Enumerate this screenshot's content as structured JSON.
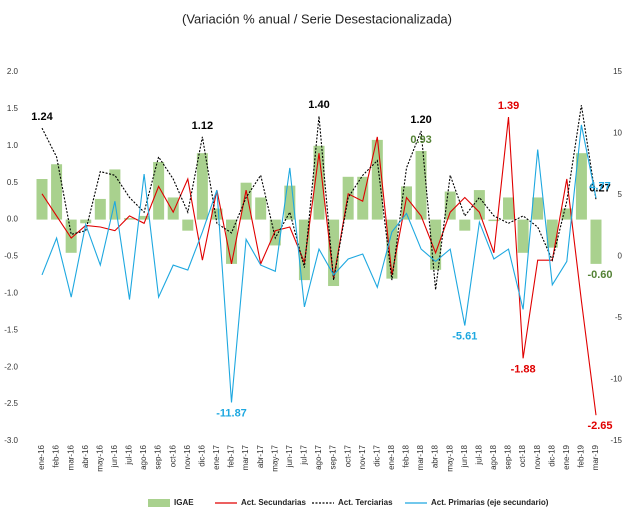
{
  "chart_data": {
    "type": "combo",
    "title": "(Variación % anual / Serie Desestacionalizada)",
    "categories": [
      "ene-16",
      "feb-16",
      "mar-16",
      "abr-16",
      "may-16",
      "jun-16",
      "jul-16",
      "ago-16",
      "sep-16",
      "oct-16",
      "nov-16",
      "dic-16",
      "ene-17",
      "feb-17",
      "mar-17",
      "abr-17",
      "may-17",
      "jun-17",
      "jul-17",
      "ago-17",
      "sep-17",
      "oct-17",
      "nov-17",
      "dic-17",
      "ene-18",
      "feb-18",
      "mar-18",
      "abr-18",
      "may-18",
      "jun-18",
      "jul-18",
      "ago-18",
      "sep-18",
      "oct-18",
      "nov-18",
      "dic-18",
      "ene-19",
      "feb-19",
      "mar-19"
    ],
    "series": [
      {
        "name": "IGAE",
        "kind": "bar",
        "color": "#a9d18e",
        "label_color": "#548235",
        "values": [
          0.55,
          0.75,
          -0.45,
          -0.05,
          0.28,
          0.68,
          0.02,
          0.05,
          0.78,
          0.3,
          -0.15,
          0.9,
          0.15,
          -0.6,
          0.5,
          0.3,
          -0.35,
          0.46,
          -0.82,
          1.0,
          -0.9,
          0.58,
          0.58,
          1.08,
          -0.8,
          0.45,
          0.93,
          -0.68,
          0.38,
          -0.15,
          0.4,
          -0.02,
          0.3,
          -0.45,
          0.3,
          -0.38,
          0.15,
          0.9,
          -0.6
        ],
        "value_labels": [
          null,
          null,
          null,
          null,
          null,
          null,
          null,
          null,
          null,
          null,
          null,
          null,
          null,
          null,
          null,
          null,
          null,
          null,
          null,
          null,
          null,
          null,
          null,
          null,
          null,
          null,
          "0.93",
          null,
          null,
          null,
          null,
          null,
          null,
          null,
          null,
          null,
          null,
          null,
          "-0.60"
        ]
      },
      {
        "name": "Act. Secundarias",
        "kind": "line",
        "color": "#e00000",
        "values": [
          0.35,
          0.05,
          -0.25,
          -0.08,
          -0.1,
          -0.15,
          0.05,
          -0.05,
          0.45,
          0.1,
          0.55,
          -0.55,
          0.4,
          -0.6,
          0.4,
          -0.6,
          -0.15,
          -0.1,
          -0.58,
          0.9,
          -0.8,
          0.35,
          0.25,
          1.12,
          -0.75,
          0.3,
          0.05,
          -0.45,
          0.1,
          0.3,
          0.1,
          -0.45,
          1.39,
          -1.88,
          -0.55,
          -0.55,
          0.55,
          -1.1,
          -2.65
        ],
        "value_labels": [
          null,
          null,
          null,
          null,
          null,
          null,
          null,
          null,
          null,
          null,
          null,
          null,
          null,
          null,
          null,
          null,
          null,
          null,
          null,
          null,
          null,
          null,
          null,
          null,
          null,
          null,
          null,
          null,
          null,
          null,
          null,
          null,
          "1.39",
          "-1.88",
          null,
          null,
          null,
          null,
          "-2.65"
        ]
      },
      {
        "name": "Act. Terciarias",
        "kind": "line",
        "dashed": true,
        "color": "#000000",
        "values": [
          1.24,
          0.85,
          -0.2,
          -0.15,
          0.65,
          0.6,
          0.3,
          0.1,
          0.85,
          0.55,
          0.1,
          1.12,
          -0.05,
          -0.18,
          0.3,
          0.6,
          -0.25,
          0.1,
          -0.65,
          1.4,
          -0.82,
          0.3,
          0.6,
          0.8,
          -0.82,
          0.7,
          1.2,
          -0.95,
          0.6,
          0.05,
          0.3,
          0.05,
          -0.05,
          0.05,
          -0.1,
          -0.55,
          0.25,
          1.55,
          0.27
        ],
        "value_labels": [
          "1.24",
          null,
          null,
          null,
          null,
          null,
          null,
          null,
          null,
          null,
          null,
          "1.12",
          null,
          null,
          null,
          null,
          null,
          null,
          null,
          "1.40",
          null,
          null,
          null,
          null,
          null,
          null,
          "1.20",
          null,
          null,
          null,
          null,
          null,
          null,
          null,
          null,
          null,
          null,
          null,
          "0.27"
        ]
      },
      {
        "name": "Act. Primarias (eje secundario)",
        "kind": "line",
        "axis": "y2",
        "color": "#1ea8e0",
        "values": [
          -1.5,
          1.5,
          -3.3,
          2.6,
          -0.7,
          4.5,
          -3.5,
          6.7,
          -3.3,
          -0.7,
          -1.1,
          2.0,
          5.4,
          -11.87,
          1.4,
          -0.7,
          -1.2,
          7.2,
          -4.1,
          0.6,
          -1.5,
          -0.2,
          0.2,
          -2.5,
          2.0,
          3.5,
          0.6,
          -0.4,
          0.6,
          -5.61,
          2.8,
          -0.2,
          0.6,
          -4.3,
          8.7,
          -2.3,
          -0.4,
          10.7,
          4.77
        ],
        "value_labels": [
          null,
          null,
          null,
          null,
          null,
          null,
          null,
          null,
          null,
          null,
          null,
          null,
          null,
          "-11.87",
          null,
          null,
          null,
          null,
          null,
          null,
          null,
          null,
          null,
          null,
          null,
          null,
          null,
          null,
          null,
          "-5.61",
          null,
          null,
          null,
          null,
          null,
          null,
          null,
          null,
          "4.77"
        ]
      }
    ],
    "ylim": [
      -3,
      2
    ],
    "yticks": [
      {
        "value": 2,
        "label": "2.0"
      },
      {
        "value": 1.5,
        "label": "1.5"
      },
      {
        "value": 1,
        "label": "1.0"
      },
      {
        "value": 0.5,
        "label": "0.5"
      },
      {
        "value": 0,
        "label": "0.0"
      },
      {
        "value": -0.5,
        "label": "-0.5"
      },
      {
        "value": -1,
        "label": "-1.0"
      },
      {
        "value": -1.5,
        "label": "-1.5"
      },
      {
        "value": -2,
        "label": "-2.0"
      },
      {
        "value": -2.5,
        "label": "-2.5"
      },
      {
        "value": -3,
        "label": "-3.0"
      }
    ],
    "y2lim": [
      -15,
      15
    ],
    "y2ticks": [
      15,
      10,
      5,
      0,
      -5,
      -10,
      -15
    ],
    "grid": false
  }
}
